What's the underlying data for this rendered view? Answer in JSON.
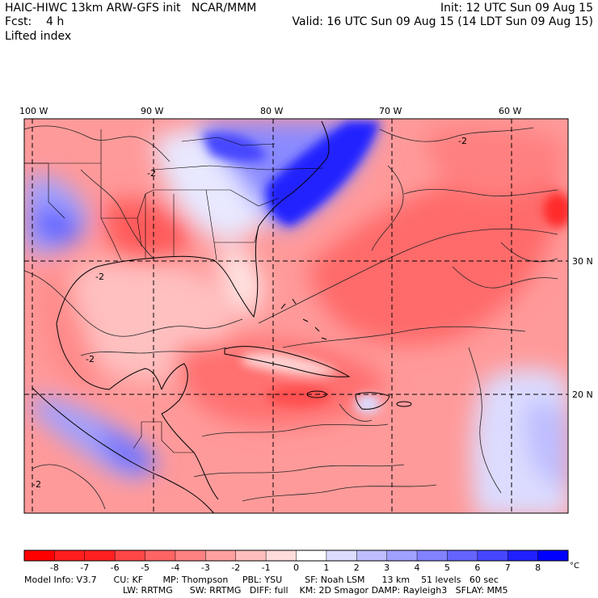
{
  "header": {
    "title_left": "HAIC-HIWC 13km ARW-GFS init   NCAR/MMM",
    "init": "Init: 12 UTC Sun 09 Aug 15",
    "fcst_label": "Fcst:    4 h",
    "valid": "Valid: 16 UTC Sun 09 Aug 15 (14 LDT Sun 09 Aug 15)",
    "field": "Lifted index"
  },
  "map": {
    "lon_labels": [
      "100 W",
      "90 W",
      "80 W",
      "70 W",
      "60 W"
    ],
    "lat_labels": [
      "30 N",
      "20 N"
    ],
    "contour_labels": [
      "-2",
      "-2",
      "-2",
      "-2",
      "-2"
    ]
  },
  "legend": {
    "ticks": [
      "-8",
      "-7",
      "-6",
      "-5",
      "-4",
      "-3",
      "-2",
      "-1",
      "0",
      "1",
      "2",
      "3",
      "4",
      "5",
      "6",
      "7",
      "8"
    ],
    "unit": "°C",
    "colors": [
      "#ff0000",
      "#ff2020",
      "#ff4646",
      "#ff6464",
      "#ff8282",
      "#ffa0a0",
      "#ffbebe",
      "#ffdcdc",
      "#ffffff",
      "#dcdcff",
      "#bebeff",
      "#a0a0ff",
      "#8282ff",
      "#6464ff",
      "#4646ff",
      "#2020ff",
      "#0000ff"
    ]
  },
  "footer": {
    "line1": "Model Info: V3.7      CU: KF       MP: Thompson     PBL: YSU        SF: Noah LSM      13 km    51 levels   60 sec",
    "line2": "LW: RRTMG      SW: RRTMG   DIFF: full    KM: 2D Smagor DAMP: Rayleigh3   SFLAY: MM5"
  }
}
